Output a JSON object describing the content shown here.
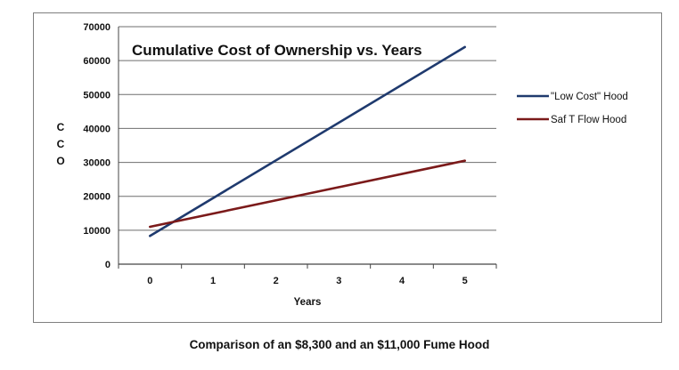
{
  "caption": "Comparison of an $8,300 and an $11,000 Fume Hood",
  "chart_data": {
    "type": "line",
    "title": "Cumulative Cost of Ownership vs. Years",
    "xlabel": "Years",
    "ylabel": "CCO",
    "x": [
      0,
      5
    ],
    "xticks": [
      "0",
      "1",
      "2",
      "3",
      "4",
      "5"
    ],
    "yticks": [
      "0",
      "10000",
      "20000",
      "30000",
      "40000",
      "50000",
      "60000",
      "70000"
    ],
    "ylim": [
      0,
      70000
    ],
    "grid": true,
    "legend_position": "right",
    "series": [
      {
        "name": "\"Low Cost\" Hood",
        "color": "#1f3a6e",
        "values": [
          8300,
          64000
        ]
      },
      {
        "name": "Saf T Flow Hood",
        "color": "#7b1a1a",
        "values": [
          11000,
          30500
        ]
      }
    ]
  }
}
